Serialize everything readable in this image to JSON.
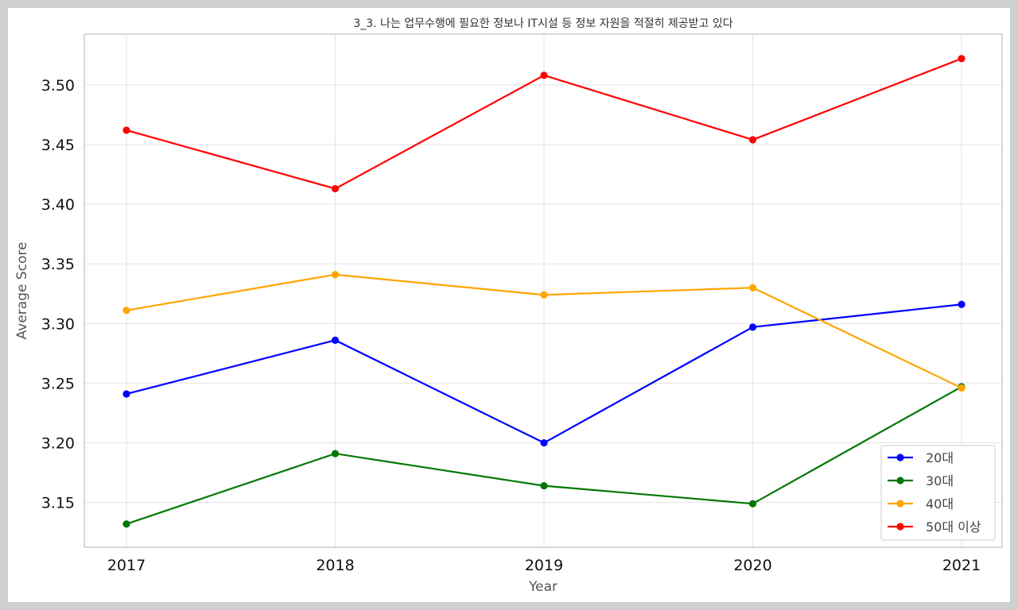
{
  "chart_data": {
    "type": "line",
    "title": "3_3. 나는 업무수행에 필요한 정보나 IT시설 등 정보 자원을 적절히 제공받고 있다",
    "xlabel": "Year",
    "ylabel": "Average Score",
    "x": [
      2017,
      2018,
      2019,
      2020,
      2021
    ],
    "x_tick_labels": [
      "2017",
      "2018",
      "2019",
      "2020",
      "2021"
    ],
    "y_ticks": [
      3.15,
      3.2,
      3.25,
      3.3,
      3.35,
      3.4,
      3.45,
      3.5
    ],
    "y_tick_labels": [
      "3.15",
      "3.20",
      "3.25",
      "3.30",
      "3.35",
      "3.40",
      "3.45",
      "3.50"
    ],
    "ylim": [
      3.1125,
      3.5425
    ],
    "grid": true,
    "legend_position": "bottom-right",
    "series": [
      {
        "name": "20대",
        "color": "#0000ff",
        "values": [
          3.241,
          3.286,
          3.2,
          3.297,
          3.316
        ]
      },
      {
        "name": "30대",
        "color": "#007800",
        "values": [
          3.132,
          3.191,
          3.164,
          3.149,
          3.247
        ]
      },
      {
        "name": "40대",
        "color": "#ffa500",
        "values": [
          3.311,
          3.341,
          3.324,
          3.33,
          3.246
        ]
      },
      {
        "name": "50대 이상",
        "color": "#ff0000",
        "values": [
          3.462,
          3.413,
          3.508,
          3.454,
          3.522
        ]
      }
    ]
  }
}
